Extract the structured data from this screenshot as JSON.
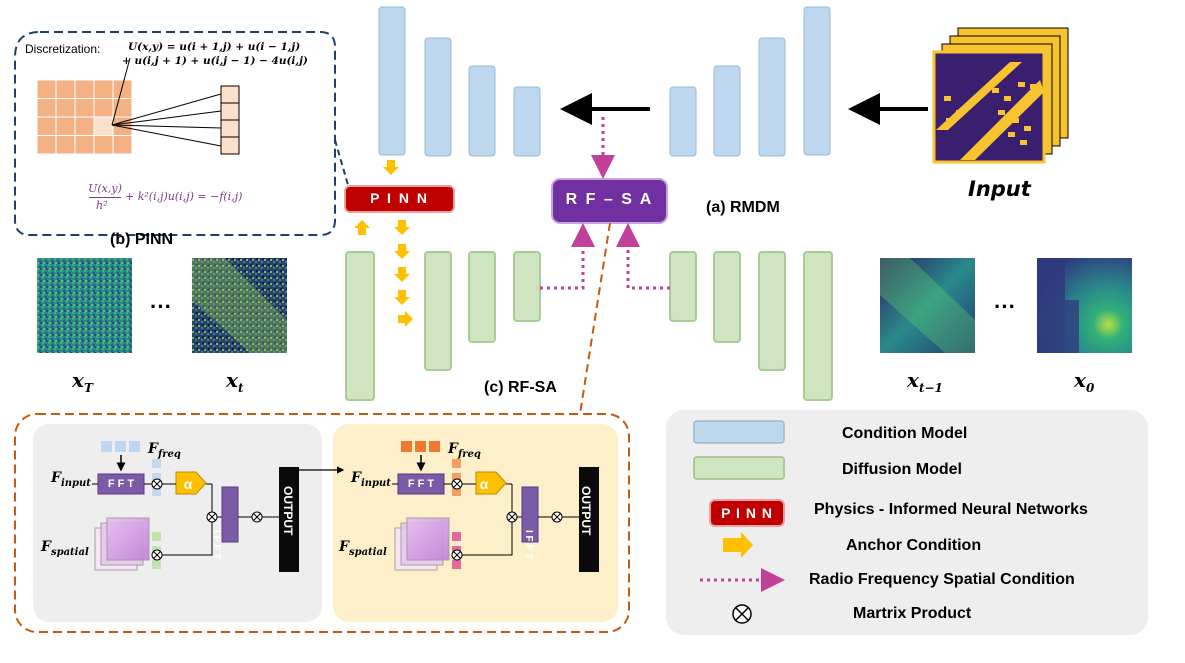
{
  "title_rmdm": "(a) RMDM",
  "title_pinn": "(b) PINN",
  "title_rfsa": "(c) RF-SA",
  "input_label": "Input",
  "pinn_box": "P I N N",
  "rfsa_box": "R F – S A",
  "discretization_label": "Discretization:",
  "eq_line1": "U(x,y) = u(i + 1,j) + u(i − 1,j)",
  "eq_line2": "+ u(i,j + 1) + u(i,j − 1) − 4u(i,j)",
  "pinn_equation": "U(x,y)/h² + k²(i,j)u(i,j) = −f(i,j)",
  "pinn_eq_num": "U(x,y)",
  "pinn_eq_den": "h²",
  "pinn_eq_rest": "+ k²(i,j)u(i,j) = −f(i,j)",
  "samples": {
    "xT": "x",
    "xT_sub": "T",
    "xt": "x",
    "xt_sub": "t",
    "xt1": "x",
    "xt1_sub": "t−1",
    "x0": "x",
    "x0_sub": "0",
    "ellipsis": "···"
  },
  "rfsa_detail": {
    "f_freq": "F",
    "f_freq_sub": "freq",
    "f_input": "F",
    "f_input_sub": "input",
    "f_spatial": "F",
    "f_spatial_sub": "spatial",
    "fft": "F F T",
    "ifft": "I F F T",
    "alpha": "α",
    "output": "OUTPUT"
  },
  "legend": {
    "condition": "Condition Model",
    "diffusion": "Diffusion Model",
    "pinn_icon": "P I N N",
    "pinn": "Physics - Informed Neural Networks",
    "anchor": "Anchor Condition",
    "rf_spatial": "Radio Frequency Spatial Condition",
    "product": "Martrix Product"
  },
  "colors": {
    "condition_fill": "#bcd7ee",
    "diffusion_fill": "#cfe4c0",
    "pinn_red": "#c00000",
    "rfsa_purple": "#7030a0",
    "anchor_yellow": "#ffc000",
    "rf_pink": "#c0409a",
    "pinn_grid": "#f4b183",
    "panel_gray": "#eeeeee",
    "panel_yellow": "#fcefc9",
    "dashed_blue": "#1f3f6e",
    "dashed_orange": "#c55a11"
  }
}
